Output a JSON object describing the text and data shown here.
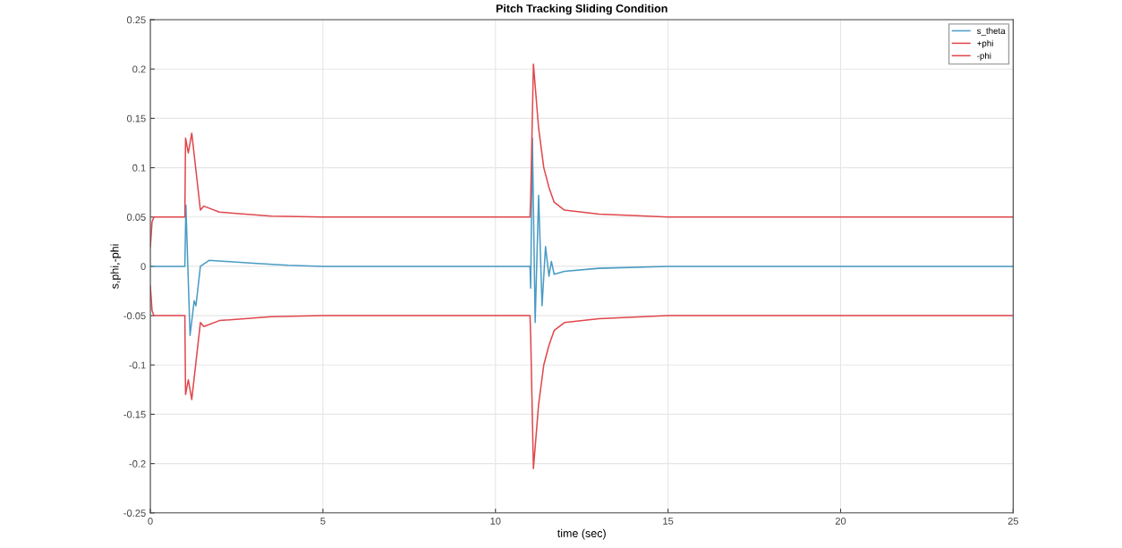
{
  "chart_data": {
    "type": "line",
    "title": "Pitch Tracking Sliding Condition",
    "xlabel": "time (sec)",
    "ylabel": "s,phi,-phi",
    "xlim": [
      0,
      25
    ],
    "xticks": [
      0,
      5,
      10,
      15,
      20,
      25
    ],
    "ylim": [
      -0.25,
      0.25
    ],
    "yticks": [
      -0.25,
      -0.2,
      -0.15,
      -0.1,
      -0.05,
      0,
      0.05,
      0.1,
      0.15,
      0.2,
      0.25
    ],
    "grid": true,
    "legend": "top right",
    "marker": "none",
    "line_style": "solid",
    "series": [
      {
        "name": "s_theta",
        "color": "#4a9bc5",
        "x": [
          0,
          1.0,
          1.03,
          1.15,
          1.27,
          1.32,
          1.45,
          1.7,
          2.2,
          3,
          4,
          5,
          11.0,
          11.02,
          11.07,
          11.15,
          11.25,
          11.35,
          11.45,
          11.55,
          11.62,
          11.7,
          12,
          13,
          15,
          25
        ],
        "values": [
          0,
          0,
          0.062,
          -0.07,
          -0.035,
          -0.04,
          0,
          0.006,
          0.005,
          0.003,
          0.001,
          0,
          0,
          -0.022,
          0.13,
          -0.057,
          0.072,
          -0.04,
          0.02,
          -0.01,
          0.005,
          -0.008,
          -0.005,
          -0.002,
          0,
          0
        ]
      },
      {
        "name": "+phi",
        "color": "#e0474c",
        "x": [
          0,
          0.05,
          0.1,
          1.0,
          1.02,
          1.1,
          1.2,
          1.45,
          1.55,
          2,
          3.5,
          5,
          11.0,
          11.02,
          11.1,
          11.25,
          11.4,
          11.55,
          11.7,
          12,
          13,
          15,
          25
        ],
        "values": [
          0.02,
          0.045,
          0.05,
          0.05,
          0.13,
          0.115,
          0.135,
          0.057,
          0.061,
          0.055,
          0.051,
          0.05,
          0.05,
          0.07,
          0.205,
          0.14,
          0.1,
          0.08,
          0.065,
          0.057,
          0.053,
          0.05,
          0.05
        ]
      },
      {
        "name": "-phi",
        "color": "#e0474c",
        "x": [
          0,
          0.05,
          0.1,
          1.0,
          1.02,
          1.1,
          1.2,
          1.45,
          1.55,
          2,
          3.5,
          5,
          11.0,
          11.02,
          11.1,
          11.25,
          11.4,
          11.55,
          11.7,
          12,
          13,
          15,
          25
        ],
        "values": [
          -0.02,
          -0.045,
          -0.05,
          -0.05,
          -0.13,
          -0.115,
          -0.135,
          -0.057,
          -0.061,
          -0.055,
          -0.051,
          -0.05,
          -0.05,
          -0.07,
          -0.205,
          -0.14,
          -0.1,
          -0.08,
          -0.065,
          -0.057,
          -0.053,
          -0.05,
          -0.05
        ]
      }
    ]
  }
}
